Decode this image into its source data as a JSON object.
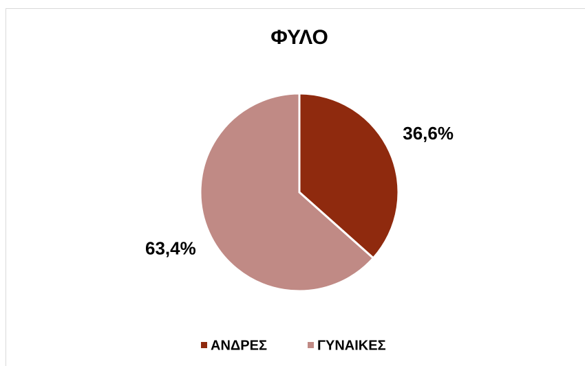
{
  "chart_data": {
    "type": "pie",
    "title": "ΦΥΛΟ",
    "categories": [
      "ΑΝΔΡΕΣ",
      "ΓΥΝΑΙΚΕΣ"
    ],
    "values": [
      36.6,
      63.4
    ],
    "value_labels": [
      "36,6%",
      "63,4%"
    ],
    "colors": [
      "#8f2a0e",
      "#c08a85"
    ],
    "legend": "bottom"
  }
}
